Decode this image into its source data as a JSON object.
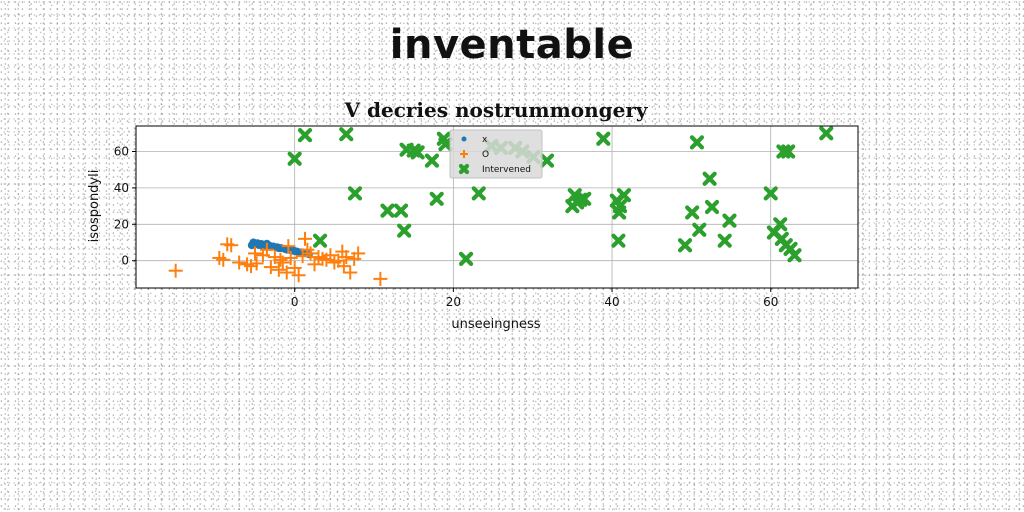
{
  "page": {
    "banner": "inventable"
  },
  "colors": {
    "x_series": "#1f77b4",
    "o_series": "#ff7f0e",
    "intervened_series": "#2ca02c",
    "grid": "#b0b0b0",
    "axes": "#000000"
  },
  "chart_data": {
    "type": "scatter",
    "title": "V decries nostrummongery",
    "xlabel": "unseeingness",
    "ylabel": "isospondyli",
    "xlim": [
      -20,
      71
    ],
    "ylim": [
      -15,
      74
    ],
    "xticks": [
      0,
      20,
      40,
      60
    ],
    "yticks": [
      0,
      20,
      40,
      60
    ],
    "grid": true,
    "legend": "upper center",
    "series": [
      {
        "name": "x",
        "marker": "circle",
        "color": "#1f77b4",
        "points": [
          [
            -5.2,
            10.0
          ],
          [
            -4.7,
            9.6
          ],
          [
            -4.2,
            9.2
          ],
          [
            -3.7,
            8.8
          ],
          [
            -3.2,
            8.3
          ],
          [
            -2.7,
            7.8
          ],
          [
            -2.2,
            7.4
          ],
          [
            -1.7,
            6.9
          ],
          [
            -1.2,
            6.4
          ],
          [
            -0.7,
            6.0
          ],
          [
            -0.2,
            5.5
          ],
          [
            0.3,
            5.0
          ],
          [
            0.8,
            4.6
          ],
          [
            1.3,
            4.1
          ],
          [
            1.8,
            3.6
          ],
          [
            -5.0,
            9.0
          ],
          [
            -4.5,
            8.6
          ],
          [
            -4.0,
            8.2
          ],
          [
            -3.0,
            7.6
          ],
          [
            -2.0,
            6.9
          ],
          [
            -1.0,
            6.1
          ],
          [
            0.0,
            5.3
          ],
          [
            1.0,
            4.5
          ],
          [
            -5.4,
            8.5
          ],
          [
            -3.5,
            9.3
          ]
        ]
      },
      {
        "name": "O",
        "marker": "plus",
        "color": "#ff7f0e",
        "points": [
          [
            -15.0,
            -5.5
          ],
          [
            -9.5,
            1.5
          ],
          [
            -9.0,
            0.5
          ],
          [
            -8.5,
            9.0
          ],
          [
            -8.0,
            8.5
          ],
          [
            -6.0,
            -2.0
          ],
          [
            -5.5,
            -3.0
          ],
          [
            -5.0,
            4.0
          ],
          [
            -4.8,
            -1.5
          ],
          [
            -4.0,
            3.0
          ],
          [
            -3.5,
            6.0
          ],
          [
            -3.0,
            -3.5
          ],
          [
            -2.5,
            2.0
          ],
          [
            -2.0,
            -5.0
          ],
          [
            -1.8,
            0.5
          ],
          [
            -1.5,
            -1.0
          ],
          [
            -1.0,
            -6.5
          ],
          [
            -0.5,
            1.5
          ],
          [
            0.0,
            -4.0
          ],
          [
            0.5,
            -8.0
          ],
          [
            1.0,
            2.5
          ],
          [
            1.3,
            12.0
          ],
          [
            1.6,
            6.0
          ],
          [
            2.0,
            4.0
          ],
          [
            2.5,
            -2.0
          ],
          [
            3.0,
            2.0
          ],
          [
            3.5,
            1.0
          ],
          [
            4.0,
            0.5
          ],
          [
            4.5,
            3.0
          ],
          [
            5.0,
            -1.0
          ],
          [
            5.5,
            0.0
          ],
          [
            6.0,
            5.0
          ],
          [
            6.2,
            -3.0
          ],
          [
            6.5,
            2.0
          ],
          [
            7.0,
            -6.5
          ],
          [
            7.5,
            1.0
          ],
          [
            8.0,
            4.0
          ],
          [
            10.8,
            -10.0
          ],
          [
            -7.0,
            -1.0
          ],
          [
            -0.8,
            8.0
          ]
        ]
      },
      {
        "name": "Intervened",
        "marker": "x-thick",
        "color": "#2ca02c",
        "points": [
          [
            1.3,
            69.0
          ],
          [
            6.5,
            69.5
          ],
          [
            0.0,
            56.0
          ],
          [
            7.6,
            37.0
          ],
          [
            3.2,
            11.0
          ],
          [
            11.7,
            27.5
          ],
          [
            13.4,
            27.5
          ],
          [
            13.8,
            16.5
          ],
          [
            14.1,
            61.0
          ],
          [
            15.0,
            60.5
          ],
          [
            15.5,
            59.5
          ],
          [
            17.3,
            55.0
          ],
          [
            17.9,
            34.0
          ],
          [
            18.8,
            67.0
          ],
          [
            19.0,
            64.0
          ],
          [
            21.6,
            1.0
          ],
          [
            23.2,
            37.0
          ],
          [
            24.8,
            63.0
          ],
          [
            26.0,
            62.0
          ],
          [
            27.8,
            62.0
          ],
          [
            28.7,
            60.0
          ],
          [
            30.1,
            57.0
          ],
          [
            31.8,
            55.0
          ],
          [
            35.0,
            30.0
          ],
          [
            35.3,
            36.0
          ],
          [
            35.6,
            32.0
          ],
          [
            36.0,
            33.5
          ],
          [
            36.5,
            34.0
          ],
          [
            38.9,
            67.0
          ],
          [
            40.6,
            33.0
          ],
          [
            40.8,
            11.0
          ],
          [
            40.9,
            26.5
          ],
          [
            41.0,
            30.0
          ],
          [
            41.5,
            36.0
          ],
          [
            49.2,
            8.5
          ],
          [
            50.1,
            26.5
          ],
          [
            50.7,
            65.0
          ],
          [
            51.0,
            17.0
          ],
          [
            52.3,
            45.0
          ],
          [
            52.6,
            29.5
          ],
          [
            54.2,
            11.0
          ],
          [
            54.8,
            22.0
          ],
          [
            60.0,
            37.0
          ],
          [
            60.4,
            15.5
          ],
          [
            61.2,
            20.0
          ],
          [
            61.4,
            12.0
          ],
          [
            61.6,
            60.0
          ],
          [
            61.9,
            8.5
          ],
          [
            62.2,
            60.0
          ],
          [
            62.5,
            6.5
          ],
          [
            63.0,
            3.0
          ],
          [
            67.0,
            70.0
          ]
        ]
      }
    ]
  }
}
